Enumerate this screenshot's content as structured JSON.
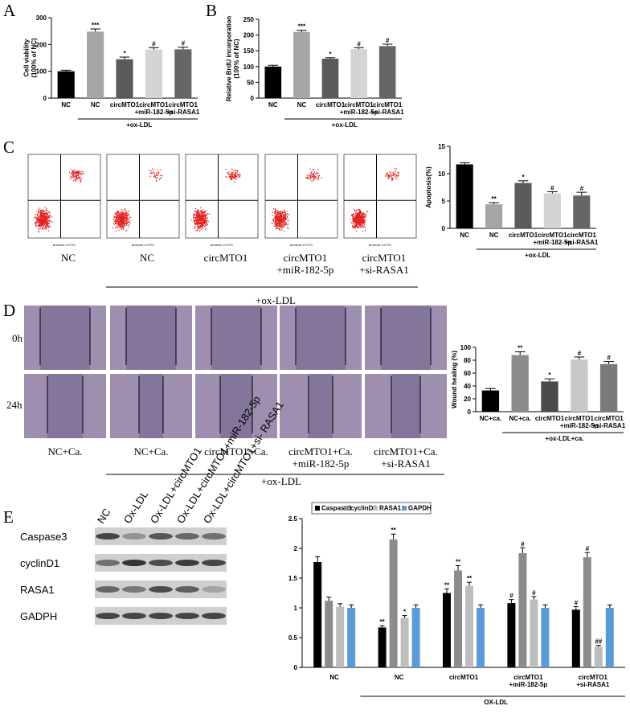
{
  "panels": {
    "letters": [
      "A",
      "B",
      "C",
      "D",
      "E"
    ],
    "flow": {
      "x_label": "Annexin-V-FITC",
      "labels": [
        "NC",
        "NC",
        "circMTO1",
        "circMTO1\n+miR-182-5p",
        "circMTO1\n+si-RASA1"
      ],
      "group_label": "+ox-LDL"
    },
    "wound": {
      "rows": [
        "0h",
        "24h"
      ],
      "labels": [
        "NC+Ca.",
        "NC+Ca.",
        "circMTO1+Ca.",
        "circMTO1+Ca.\n+miR-182-5p",
        "circMTO1+Ca.\n+si-RASA1"
      ],
      "group_label": "+ox-LDL"
    },
    "blot": {
      "lanes": [
        "NC",
        "Ox-LDL",
        "Ox-LDL+circMTO1",
        "Ox-LDL+circMTO1+miR-182-5p",
        "Ox-LDL+circMTO1+si- RASA1"
      ],
      "rows": [
        "Caspase3",
        "cyclinD1",
        "RASA1",
        "GADPH"
      ]
    }
  },
  "chart_data": [
    {
      "type": "bar",
      "y_label": "Cell viability\n(100% of NC)",
      "categories": [
        "NC",
        "NC",
        "circMTO1",
        "circMTO1\n+miR-182-5p",
        "circMTO1\n+si-RASA1"
      ],
      "values": [
        100,
        248,
        145,
        181,
        182
      ],
      "errors": [
        4,
        10,
        8,
        7,
        8
      ],
      "annotations": [
        null,
        "***",
        "*",
        "#",
        "#"
      ],
      "colors": [
        "#000000",
        "#a6a6a6",
        "#5a5a5a",
        "#d4d4d4",
        "#666666"
      ],
      "group_label": "+ox-LDL",
      "ylim": [
        0,
        300
      ],
      "yticks": [
        0,
        100,
        200,
        300
      ]
    },
    {
      "type": "bar",
      "y_label": "Relative BrdU incorporation\n(100% of NC)",
      "categories": [
        "NC",
        "NC",
        "circMTO1",
        "circMTO1\n+miR-182-5p",
        "circMTO1\n+si-RASA1"
      ],
      "values": [
        100,
        210,
        125,
        155,
        165
      ],
      "errors": [
        4,
        5,
        3,
        5,
        6
      ],
      "annotations": [
        null,
        "***",
        "*",
        "#",
        "#"
      ],
      "colors": [
        "#000000",
        "#a6a6a6",
        "#5a5a5a",
        "#d4d4d4",
        "#666666"
      ],
      "group_label": "+ox-LDL",
      "ylim": [
        0,
        250
      ],
      "yticks": [
        0,
        50,
        100,
        150,
        200,
        250
      ]
    },
    {
      "type": "bar",
      "y_label": "Apoptosis(%)",
      "categories": [
        "NC",
        "NC",
        "circMTO1",
        "circMTO1\n+miR-182-5p",
        "circMTO1\n+si-RASA1"
      ],
      "values": [
        11.7,
        4.4,
        8.3,
        6.4,
        6.0
      ],
      "errors": [
        0.3,
        0.3,
        0.4,
        0.3,
        0.6
      ],
      "annotations": [
        null,
        "**",
        "*",
        "#",
        "#"
      ],
      "colors": [
        "#000000",
        "#a6a6a6",
        "#5a5a5a",
        "#d4d4d4",
        "#666666"
      ],
      "group_label": "+ox-LDL",
      "ylim": [
        0,
        15
      ],
      "yticks": [
        0,
        5,
        10,
        15
      ]
    },
    {
      "type": "bar",
      "y_label": "Wound healing (%)",
      "categories": [
        "NC+ca.",
        "NC+ca.",
        "circMTO1",
        "circMTO1\n+miR-182-5p",
        "circMTO1\n+si-RASA1"
      ],
      "values": [
        33,
        88,
        47,
        81,
        74
      ],
      "errors": [
        3,
        5,
        4,
        4,
        4
      ],
      "annotations": [
        null,
        "**",
        "*",
        "#",
        "#"
      ],
      "colors": [
        "#000000",
        "#8c8c8c",
        "#4a4a4a",
        "#c8c8c8",
        "#7a7a7a"
      ],
      "group_label": "+ox-LDL+ca.",
      "ylim": [
        0,
        100
      ],
      "yticks": [
        0,
        20,
        40,
        60,
        80,
        100
      ]
    },
    {
      "type": "grouped_bar",
      "categories": [
        "NC",
        "NC",
        "circMTO1",
        "circMTO1\n+miR-182-5p",
        "circMTO1\n+si-RASA1"
      ],
      "series": [
        {
          "name": "Caspase3",
          "color": "#000000",
          "values": [
            1.77,
            0.67,
            1.25,
            1.08,
            0.97
          ],
          "errors": [
            0.09,
            0.03,
            0.07,
            0.06,
            0.05
          ],
          "annotations": [
            null,
            "**",
            "**",
            "#",
            "#"
          ]
        },
        {
          "name": "cyclinD1",
          "color": "#8c8c8c",
          "values": [
            1.12,
            2.15,
            1.63,
            1.92,
            1.85
          ],
          "errors": [
            0.06,
            0.09,
            0.08,
            0.09,
            0.08
          ],
          "annotations": [
            null,
            "**",
            "**",
            "#",
            "#"
          ]
        },
        {
          "name": "RASA1",
          "color": "#bdbdbd",
          "values": [
            1.02,
            0.83,
            1.37,
            1.14,
            0.35
          ],
          "errors": [
            0.05,
            0.04,
            0.06,
            0.05,
            0.02
          ],
          "annotations": [
            null,
            "*",
            "**",
            "#",
            "##"
          ]
        },
        {
          "name": "GAPDH",
          "color": "#5b9bd5",
          "values": [
            1.0,
            1.0,
            1.0,
            1.0,
            1.0
          ],
          "errors": [
            0.05,
            0.05,
            0.05,
            0.05,
            0.05
          ],
          "annotations": [
            null,
            null,
            null,
            null,
            null
          ]
        }
      ],
      "group_label": "OX-LDL",
      "ylim": [
        0,
        2.5
      ],
      "yticks": [
        0,
        0.5,
        1,
        1.5,
        2,
        2.5
      ]
    }
  ]
}
